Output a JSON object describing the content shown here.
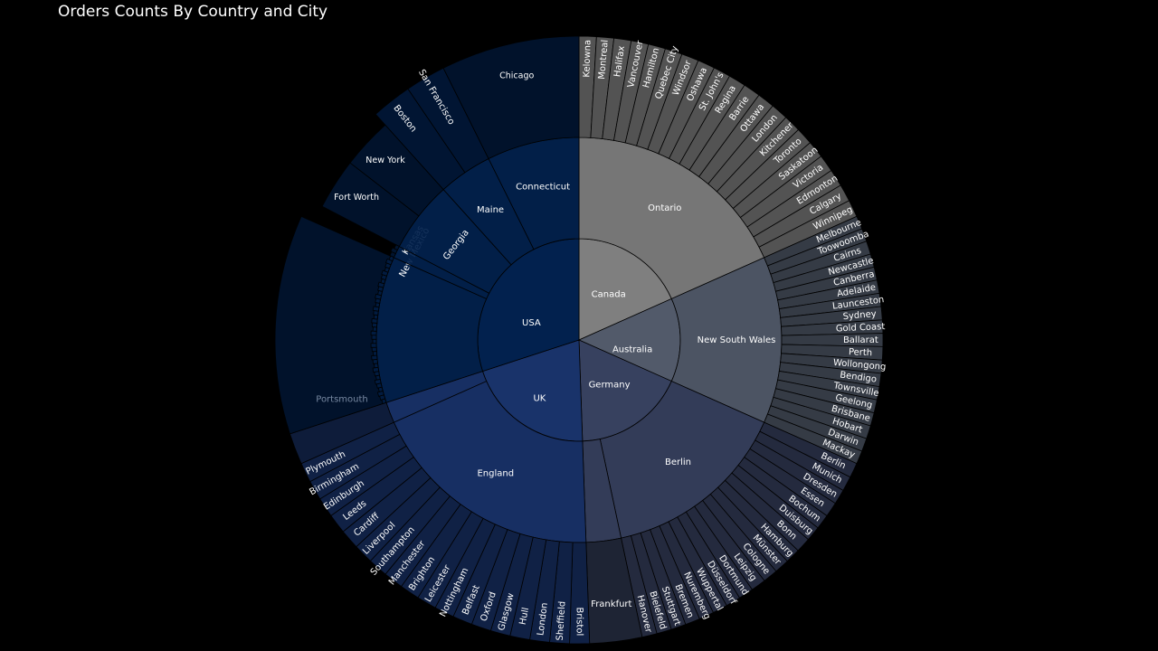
{
  "chart_data": {
    "type": "sunburst",
    "title": "Orders Counts By Country and City",
    "colors": {
      "Canada": "#7f7f7f",
      "Australia": "#525a6a",
      "Germany": "#37415f",
      "UK": "#19336a",
      "USA": "#02214e",
      "background": "#000000",
      "stroke": "#000000"
    },
    "countries": [
      {
        "name": "Canada",
        "regions": [
          {
            "name": "Ontario",
            "cities": [
              "Kelowna",
              "Montreal",
              "Halifax",
              "Vancouver",
              "Hamilton",
              "Quebec City",
              "Windsor",
              "Oshawa",
              "St. John's",
              "Regina",
              "Barrie",
              "Ottawa",
              "London",
              "Kitchener",
              "Toronto",
              "Saskatoon",
              "Victoria",
              "Edmonton",
              "Calgary",
              "Winnipeg"
            ]
          }
        ]
      },
      {
        "name": "Australia",
        "regions": [
          {
            "name": "New South Wales",
            "cities": [
              "Melbourne",
              "Toowoomba",
              "Cairns",
              "Newcastle",
              "Canberra",
              "Adelaide",
              "Launceston",
              "Sydney",
              "Gold Coast",
              "Ballarat",
              "Perth",
              "Wollongong",
              "Bendigo",
              "Townsville",
              "Geelong",
              "Brisbane",
              "Hobart",
              "Darwin",
              "Mackay"
            ]
          }
        ]
      },
      {
        "name": "Germany",
        "regions": [
          {
            "name": "Berlin",
            "cities": [
              "Berlin",
              "Munich",
              "Dresden",
              "Essen",
              "Bochum",
              "Duisburg",
              "Bonn",
              "Hamburg",
              "Münster",
              "Cologne",
              "Leipzig",
              "Dortmund",
              "Düsseldorf",
              "Wuppertal",
              "Nuremberg",
              "Bremen",
              "Stuttgart",
              "Bielefeld",
              "Hanover"
            ]
          },
          {
            "name": "Frankfurt",
            "cities": []
          }
        ]
      },
      {
        "name": "UK",
        "regions": [
          {
            "name": "England",
            "cities": [
              "Bristol",
              "Sheffield",
              "London",
              "Hull",
              "Glasgow",
              "Oxford",
              "Belfast",
              "Nottingham",
              "Leicester",
              "Brighton",
              "Manchester",
              "Southampton",
              "Liverpool",
              "Cardiff",
              "Leeds",
              "Edinburgh",
              "Birmingham",
              "Plymouth"
            ]
          },
          {
            "name": "Portsmouth",
            "cities": []
          }
        ]
      },
      {
        "name": "USA",
        "regions": [
          {
            "name": "New Mexico",
            "cities": []
          },
          {
            "name": "Kansas",
            "cities": []
          },
          {
            "name": "Georgia",
            "cities": [
              "Fort Worth",
              "New York"
            ]
          },
          {
            "name": "Maine",
            "cities": [
              "Boston",
              "San Francisco"
            ]
          },
          {
            "name": "Connecticut",
            "cities": [
              "Chicago"
            ]
          }
        ]
      }
    ]
  }
}
